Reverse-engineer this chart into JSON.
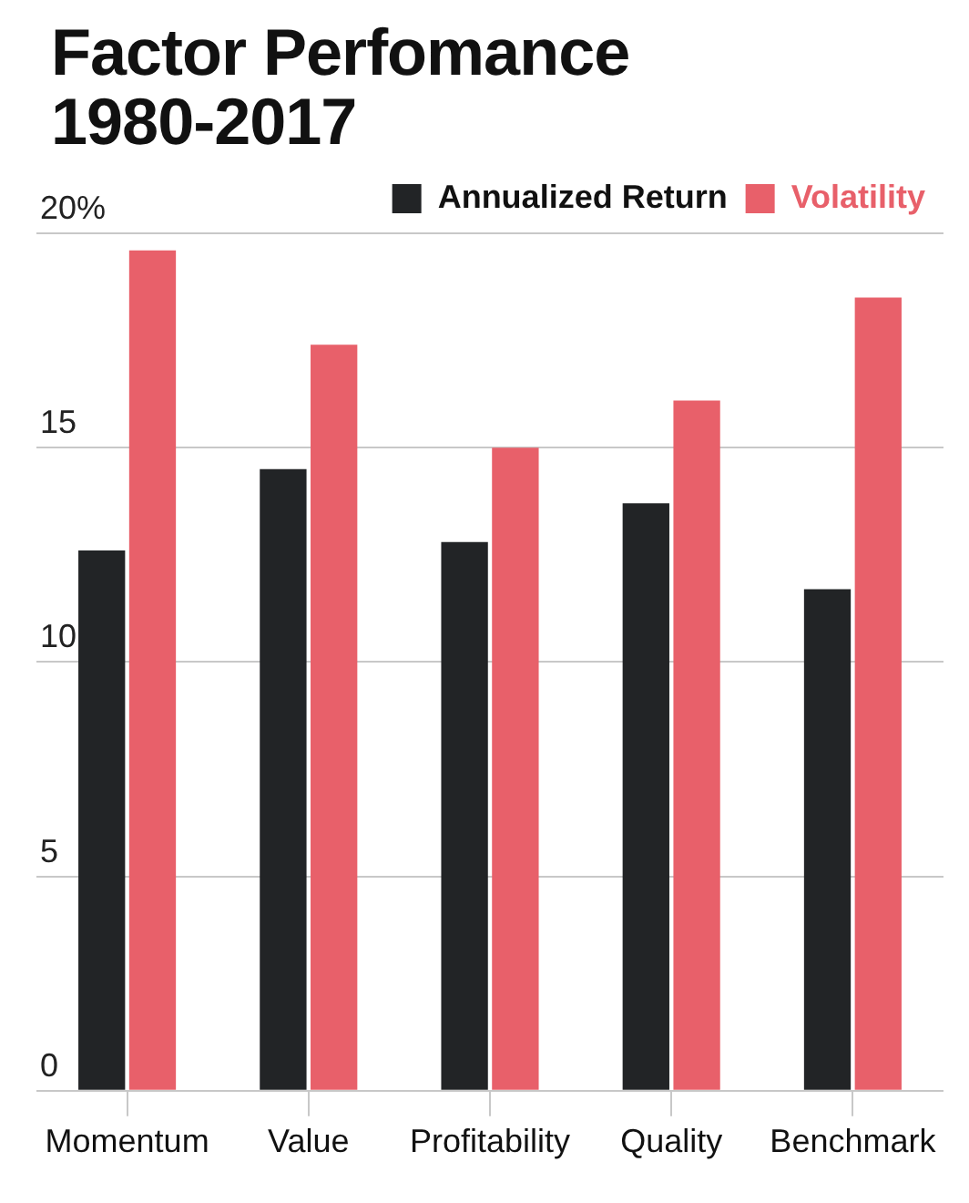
{
  "chart_data": {
    "type": "bar",
    "title": "Factor Perfomance 1980-2017",
    "categories": [
      "Momentum",
      "Value",
      "Profitability",
      "Quality",
      "Benchmark"
    ],
    "series": [
      {
        "name": "Annualized Return",
        "color": "#222426",
        "values": [
          12.6,
          14.5,
          12.8,
          13.7,
          11.7
        ]
      },
      {
        "name": "Volatility",
        "color": "#e8606a",
        "values": [
          19.6,
          17.4,
          15.0,
          16.1,
          18.5
        ]
      }
    ],
    "ylim": [
      0,
      20
    ],
    "yticks": [
      0,
      5,
      10,
      15,
      {
        "value": 20,
        "label": "20%"
      }
    ],
    "grid": "y",
    "legend": "top right"
  }
}
